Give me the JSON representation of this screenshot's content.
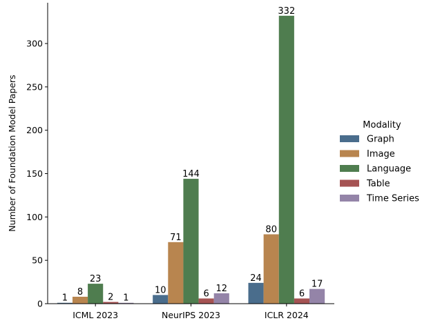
{
  "chart_data": {
    "type": "bar",
    "categories": [
      "ICML 2023",
      "NeurIPS 2023",
      "ICLR 2024"
    ],
    "series": [
      {
        "name": "Graph",
        "values": [
          1,
          10,
          24
        ],
        "color": "#4a6d8c"
      },
      {
        "name": "Image",
        "values": [
          8,
          71,
          80
        ],
        "color": "#b8854f"
      },
      {
        "name": "Language",
        "values": [
          23,
          144,
          332
        ],
        "color": "#4f7d4f"
      },
      {
        "name": "Table",
        "values": [
          2,
          6,
          6
        ],
        "color": "#a55353"
      },
      {
        "name": "Time Series",
        "values": [
          1,
          12,
          17
        ],
        "color": "#9484a8"
      }
    ],
    "title": "",
    "xlabel": "",
    "ylabel": "Number of Foundation Model Papers",
    "ylim": [
      0,
      347
    ],
    "yticks": [
      0,
      50,
      100,
      150,
      200,
      250,
      300
    ],
    "legend": {
      "title": "Modality",
      "placement": "right"
    },
    "grid": false
  }
}
